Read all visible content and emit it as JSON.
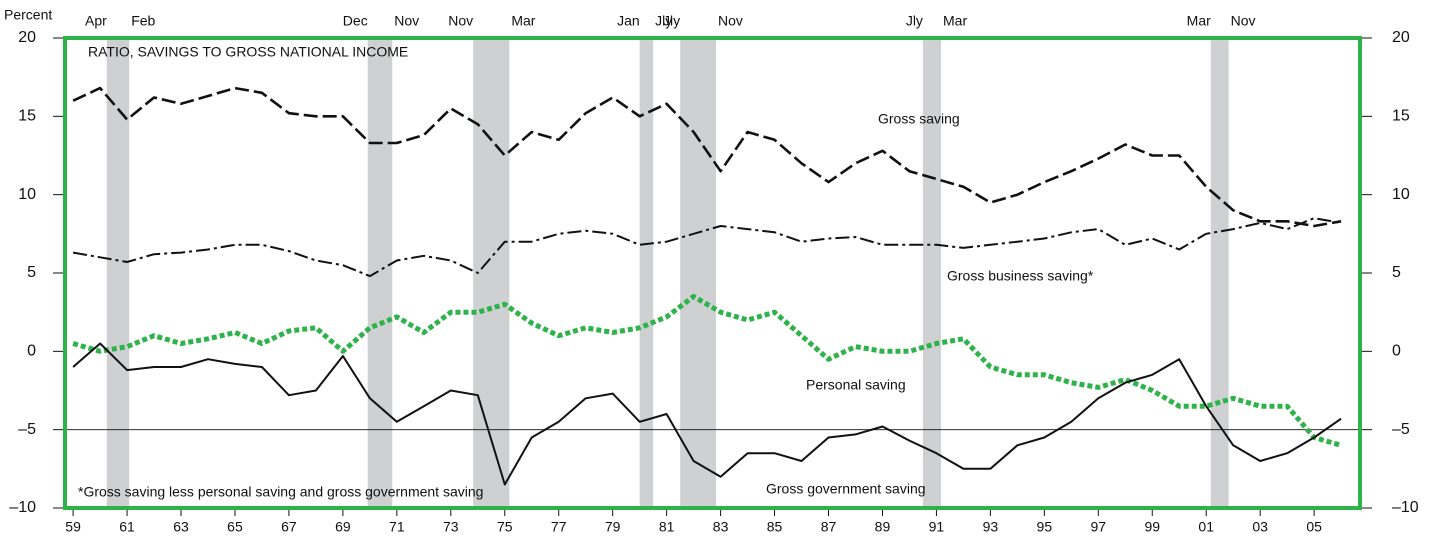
{
  "chart_data": {
    "type": "line",
    "title": "RATIO, SAVINGS TO GROSS NATIONAL INCOME",
    "y_axis_label": "Percent",
    "footnote": "*Gross saving less personal saving and gross government saving",
    "x": [
      1959,
      1960,
      1961,
      1962,
      1963,
      1964,
      1965,
      1966,
      1967,
      1968,
      1969,
      1970,
      1971,
      1972,
      1973,
      1974,
      1975,
      1976,
      1977,
      1978,
      1979,
      1980,
      1981,
      1982,
      1983,
      1984,
      1985,
      1986,
      1987,
      1988,
      1989,
      1990,
      1991,
      1992,
      1993,
      1994,
      1995,
      1996,
      1997,
      1998,
      1999,
      2000,
      2001,
      2002,
      2003,
      2004,
      2005,
      2006
    ],
    "series": [
      {
        "name": "Gross saving",
        "color": "#111111",
        "style": "dashed",
        "values": [
          16,
          16.8,
          14.8,
          16.2,
          15.8,
          16.3,
          16.8,
          16.5,
          15.2,
          15,
          15,
          13.3,
          13.3,
          13.8,
          15.5,
          14.5,
          12.5,
          14,
          13.5,
          15.2,
          16.2,
          15,
          15.8,
          14,
          11.5,
          14,
          13.5,
          12,
          10.8,
          12,
          12.8,
          11.5,
          11,
          10.5,
          9.5,
          10,
          10.8,
          11.5,
          12.3,
          13.2,
          12.5,
          12.5,
          10.5,
          9,
          8.3,
          8.3,
          8,
          8.3
        ]
      },
      {
        "name": "Gross business saving*",
        "color": "#111111",
        "style": "dashdot",
        "values": [
          6.3,
          6,
          5.7,
          6.2,
          6.3,
          6.5,
          6.8,
          6.8,
          6.4,
          5.8,
          5.5,
          4.8,
          5.8,
          6.1,
          5.8,
          5,
          7,
          7,
          7.5,
          7.7,
          7.5,
          6.8,
          7,
          7.5,
          8,
          7.8,
          7.6,
          7,
          7.2,
          7.3,
          6.8,
          6.8,
          6.8,
          6.6,
          6.8,
          7,
          7.2,
          7.6,
          7.8,
          6.8,
          7.2,
          6.5,
          7.5,
          7.8,
          8.2,
          7.8,
          8.5,
          8.2
        ]
      },
      {
        "name": "Personal saving",
        "color": "#2db34a",
        "style": "dotted",
        "values": [
          0.5,
          0,
          0.3,
          1,
          0.5,
          0.8,
          1.2,
          0.5,
          1.3,
          1.5,
          0,
          1.5,
          2.2,
          1.2,
          2.5,
          2.5,
          3,
          1.8,
          1,
          1.5,
          1.2,
          1.5,
          2.2,
          3.5,
          2.5,
          2,
          2.5,
          1,
          -0.5,
          0.3,
          0,
          0,
          0.5,
          0.8,
          -1,
          -1.5,
          -1.5,
          -2,
          -2.3,
          -1.8,
          -2.5,
          -3.5,
          -3.5,
          -3,
          -3.5,
          -3.5,
          -5.5,
          -6
        ]
      },
      {
        "name": "Gross government saving",
        "color": "#111111",
        "style": "solid",
        "values": [
          -1,
          0.5,
          -1.2,
          -1,
          -1,
          -0.5,
          -0.8,
          -1,
          -2.8,
          -2.5,
          -0.3,
          -3,
          -4.5,
          -3.5,
          -2.5,
          -2.8,
          -8.5,
          -5.5,
          -4.5,
          -3,
          -2.7,
          -4.5,
          -4,
          -7,
          -8,
          -6.5,
          -6.5,
          -7,
          -5.5,
          -5.3,
          -4.8,
          -5.7,
          -6.5,
          -7.5,
          -7.5,
          -6,
          -5.5,
          -4.5,
          -3,
          -2,
          -1.5,
          -0.5,
          -3.5,
          -6,
          -7,
          -6.5,
          -5.5,
          -4.3
        ]
      }
    ],
    "recessions": [
      {
        "start": 1960.25,
        "end": 1961.08,
        "start_label": "Apr",
        "end_label": "Feb"
      },
      {
        "start": 1969.92,
        "end": 1970.83,
        "start_label": "Dec",
        "end_label": "Nov"
      },
      {
        "start": 1973.83,
        "end": 1975.17,
        "start_label": "Nov",
        "end_label": "Mar"
      },
      {
        "start": 1980.0,
        "end": 1980.5,
        "start_label": "Jan",
        "end_label": "Jly"
      },
      {
        "start": 1981.5,
        "end": 1982.83,
        "start_label": "Jly",
        "end_label": "Nov"
      },
      {
        "start": 1990.5,
        "end": 1991.17,
        "start_label": "Jly",
        "end_label": "Mar"
      },
      {
        "start": 2001.17,
        "end": 2001.83,
        "start_label": "Mar",
        "end_label": "Nov"
      }
    ],
    "reference_line": -5,
    "xlim": [
      1958.7,
      2006.7
    ],
    "xticks": [
      {
        "value": 1959,
        "label": "59"
      },
      {
        "value": 1961,
        "label": "61"
      },
      {
        "value": 1963,
        "label": "63"
      },
      {
        "value": 1965,
        "label": "65"
      },
      {
        "value": 1967,
        "label": "67"
      },
      {
        "value": 1969,
        "label": "69"
      },
      {
        "value": 1971,
        "label": "71"
      },
      {
        "value": 1973,
        "label": "73"
      },
      {
        "value": 1975,
        "label": "75"
      },
      {
        "value": 1977,
        "label": "77"
      },
      {
        "value": 1979,
        "label": "79"
      },
      {
        "value": 1981,
        "label": "81"
      },
      {
        "value": 1983,
        "label": "83"
      },
      {
        "value": 1985,
        "label": "85"
      },
      {
        "value": 1987,
        "label": "87"
      },
      {
        "value": 1989,
        "label": "89"
      },
      {
        "value": 1991,
        "label": "91"
      },
      {
        "value": 1993,
        "label": "93"
      },
      {
        "value": 1995,
        "label": "95"
      },
      {
        "value": 1997,
        "label": "97"
      },
      {
        "value": 1999,
        "label": "99"
      },
      {
        "value": 2001,
        "label": "01"
      },
      {
        "value": 2003,
        "label": "03"
      },
      {
        "value": 2005,
        "label": "05"
      }
    ],
    "ylim": [
      -10,
      20
    ],
    "yticks": [
      {
        "value": -10,
        "label": "–10"
      },
      {
        "value": -5,
        "label": "–5"
      },
      0,
      5,
      10,
      15,
      20
    ],
    "frame_color": "#2db34a"
  }
}
